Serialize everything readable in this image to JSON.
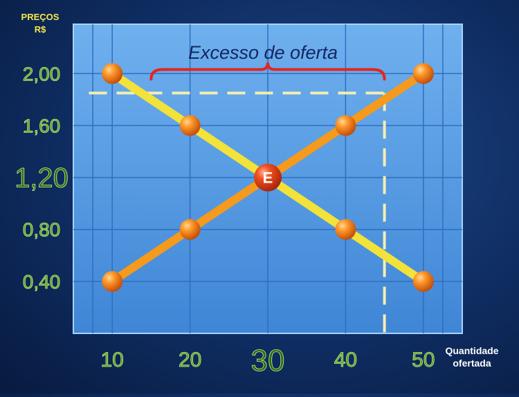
{
  "chart_data": {
    "type": "line",
    "ylabel_lines": [
      "PREÇOS",
      "R$"
    ],
    "xlabel_lines": [
      "Quantidade",
      "ofertada"
    ],
    "x_ticks": [
      10,
      20,
      30,
      40,
      50
    ],
    "x_tick_labels": [
      "10",
      "20",
      "30",
      "40",
      "50"
    ],
    "y_ticks": [
      2.0,
      1.6,
      1.2,
      0.8,
      0.4
    ],
    "y_tick_labels": [
      "2,00",
      "1,60",
      "1,20",
      "0,80",
      "0,40"
    ],
    "xlim": [
      5,
      55
    ],
    "ylim": [
      0.0,
      2.38
    ],
    "grid": true,
    "series": [
      {
        "x": [
          10,
          20,
          30,
          40,
          50
        ],
        "y": [
          2.0,
          1.6,
          1.2,
          0.8,
          0.4
        ],
        "color": "#f2e23a"
      },
      {
        "x": [
          10,
          20,
          30,
          40,
          50
        ],
        "y": [
          0.4,
          0.8,
          1.2,
          1.6,
          2.0
        ],
        "color": "#f59a1c"
      }
    ],
    "equilibrium": {
      "x": 30,
      "y": 1.2,
      "label": "E",
      "color": "#e2451e"
    },
    "price_line": {
      "y": 1.85,
      "x_from": 7,
      "x_to": 45
    },
    "supply_drop": {
      "x": 45,
      "y_from": 1.85,
      "y_to": 0.0
    },
    "excess_bracket": {
      "x_from": 15,
      "x_to": 45,
      "label": "Excesso de oferta",
      "color": "#e8241c"
    },
    "highlight_tick": {
      "x": 30,
      "y": 1.2
    }
  }
}
